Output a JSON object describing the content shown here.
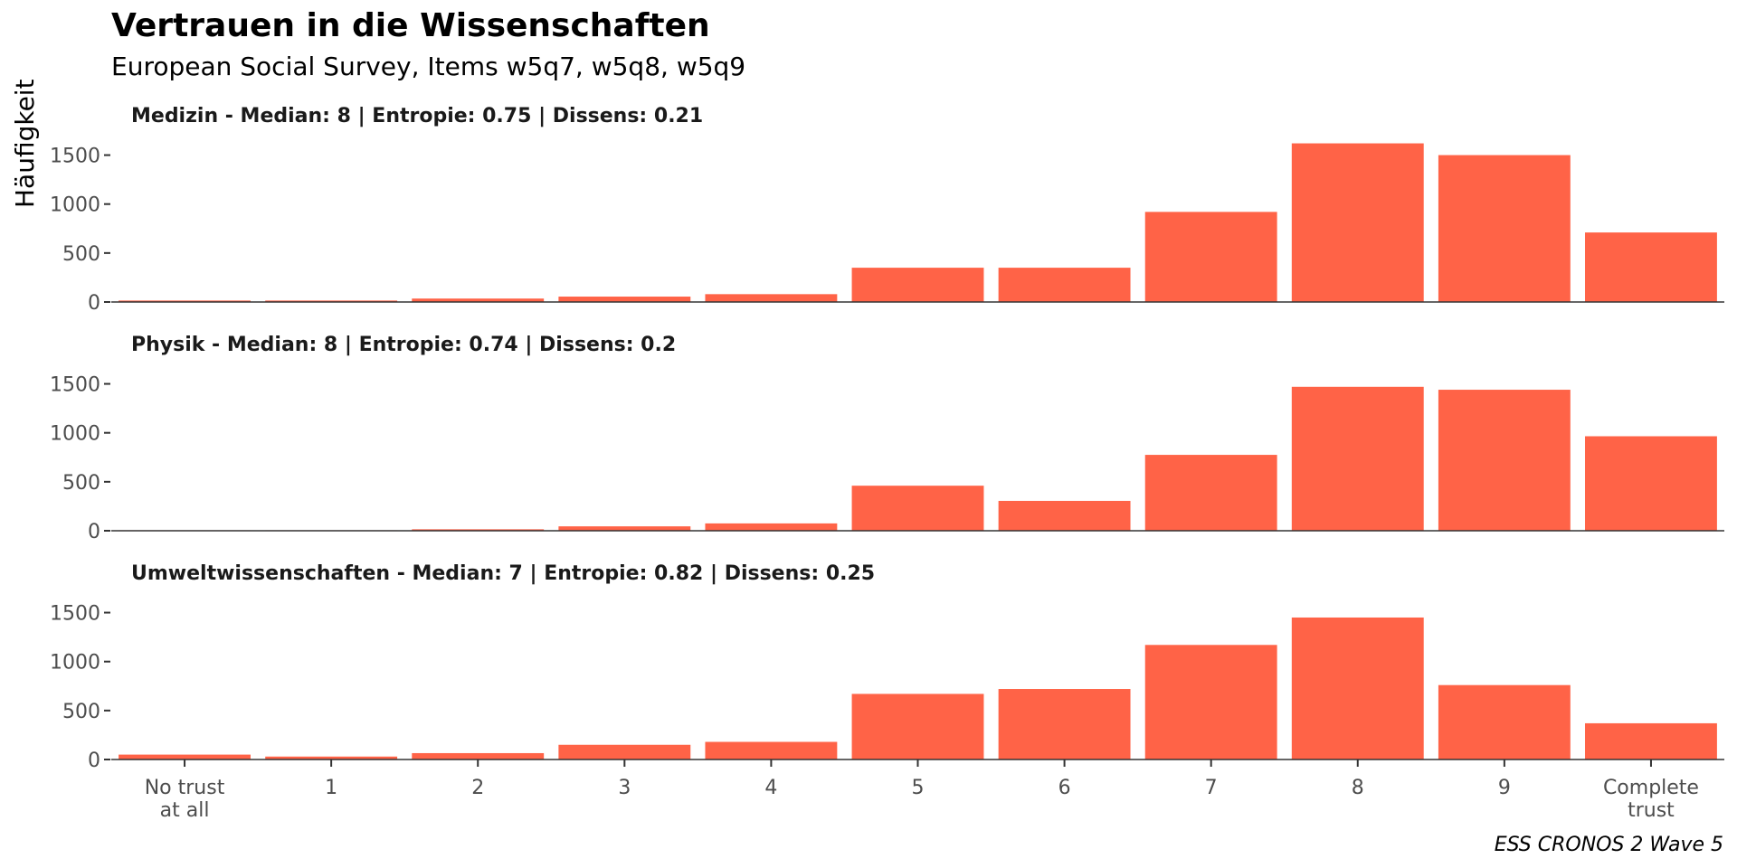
{
  "chart_data": {
    "type": "bar",
    "title": "Vertrauen in die Wissenschaften",
    "subtitle": "European Social Survey, Items w5q7, w5q8, w5q9",
    "ylabel": "Häufigkeit",
    "xlabel": "",
    "caption": "ESS CRONOS 2 Wave 5",
    "categories": [
      "No trust\nat all",
      "1",
      "2",
      "3",
      "4",
      "5",
      "6",
      "7",
      "8",
      "9",
      "Complete\ntrust"
    ],
    "ylim": [
      0,
      1700
    ],
    "yticks": [
      0,
      500,
      1000,
      1500
    ],
    "bar_color": "#FF6347",
    "grid": false,
    "panels": [
      {
        "label": "Medizin - Median: 8 | Entropie: 0.75 | Dissens: 0.21",
        "values": [
          15,
          15,
          35,
          55,
          80,
          350,
          350,
          920,
          1620,
          1500,
          710
        ]
      },
      {
        "label": "Physik - Median: 8 | Entropie: 0.74 | Dissens: 0.2",
        "values": [
          5,
          5,
          15,
          45,
          75,
          460,
          305,
          775,
          1470,
          1440,
          965
        ]
      },
      {
        "label": "Umweltwissenschaften - Median: 7 | Entropie: 0.82 | Dissens: 0.25",
        "values": [
          50,
          30,
          65,
          150,
          180,
          670,
          720,
          1170,
          1450,
          760,
          370
        ]
      }
    ]
  }
}
